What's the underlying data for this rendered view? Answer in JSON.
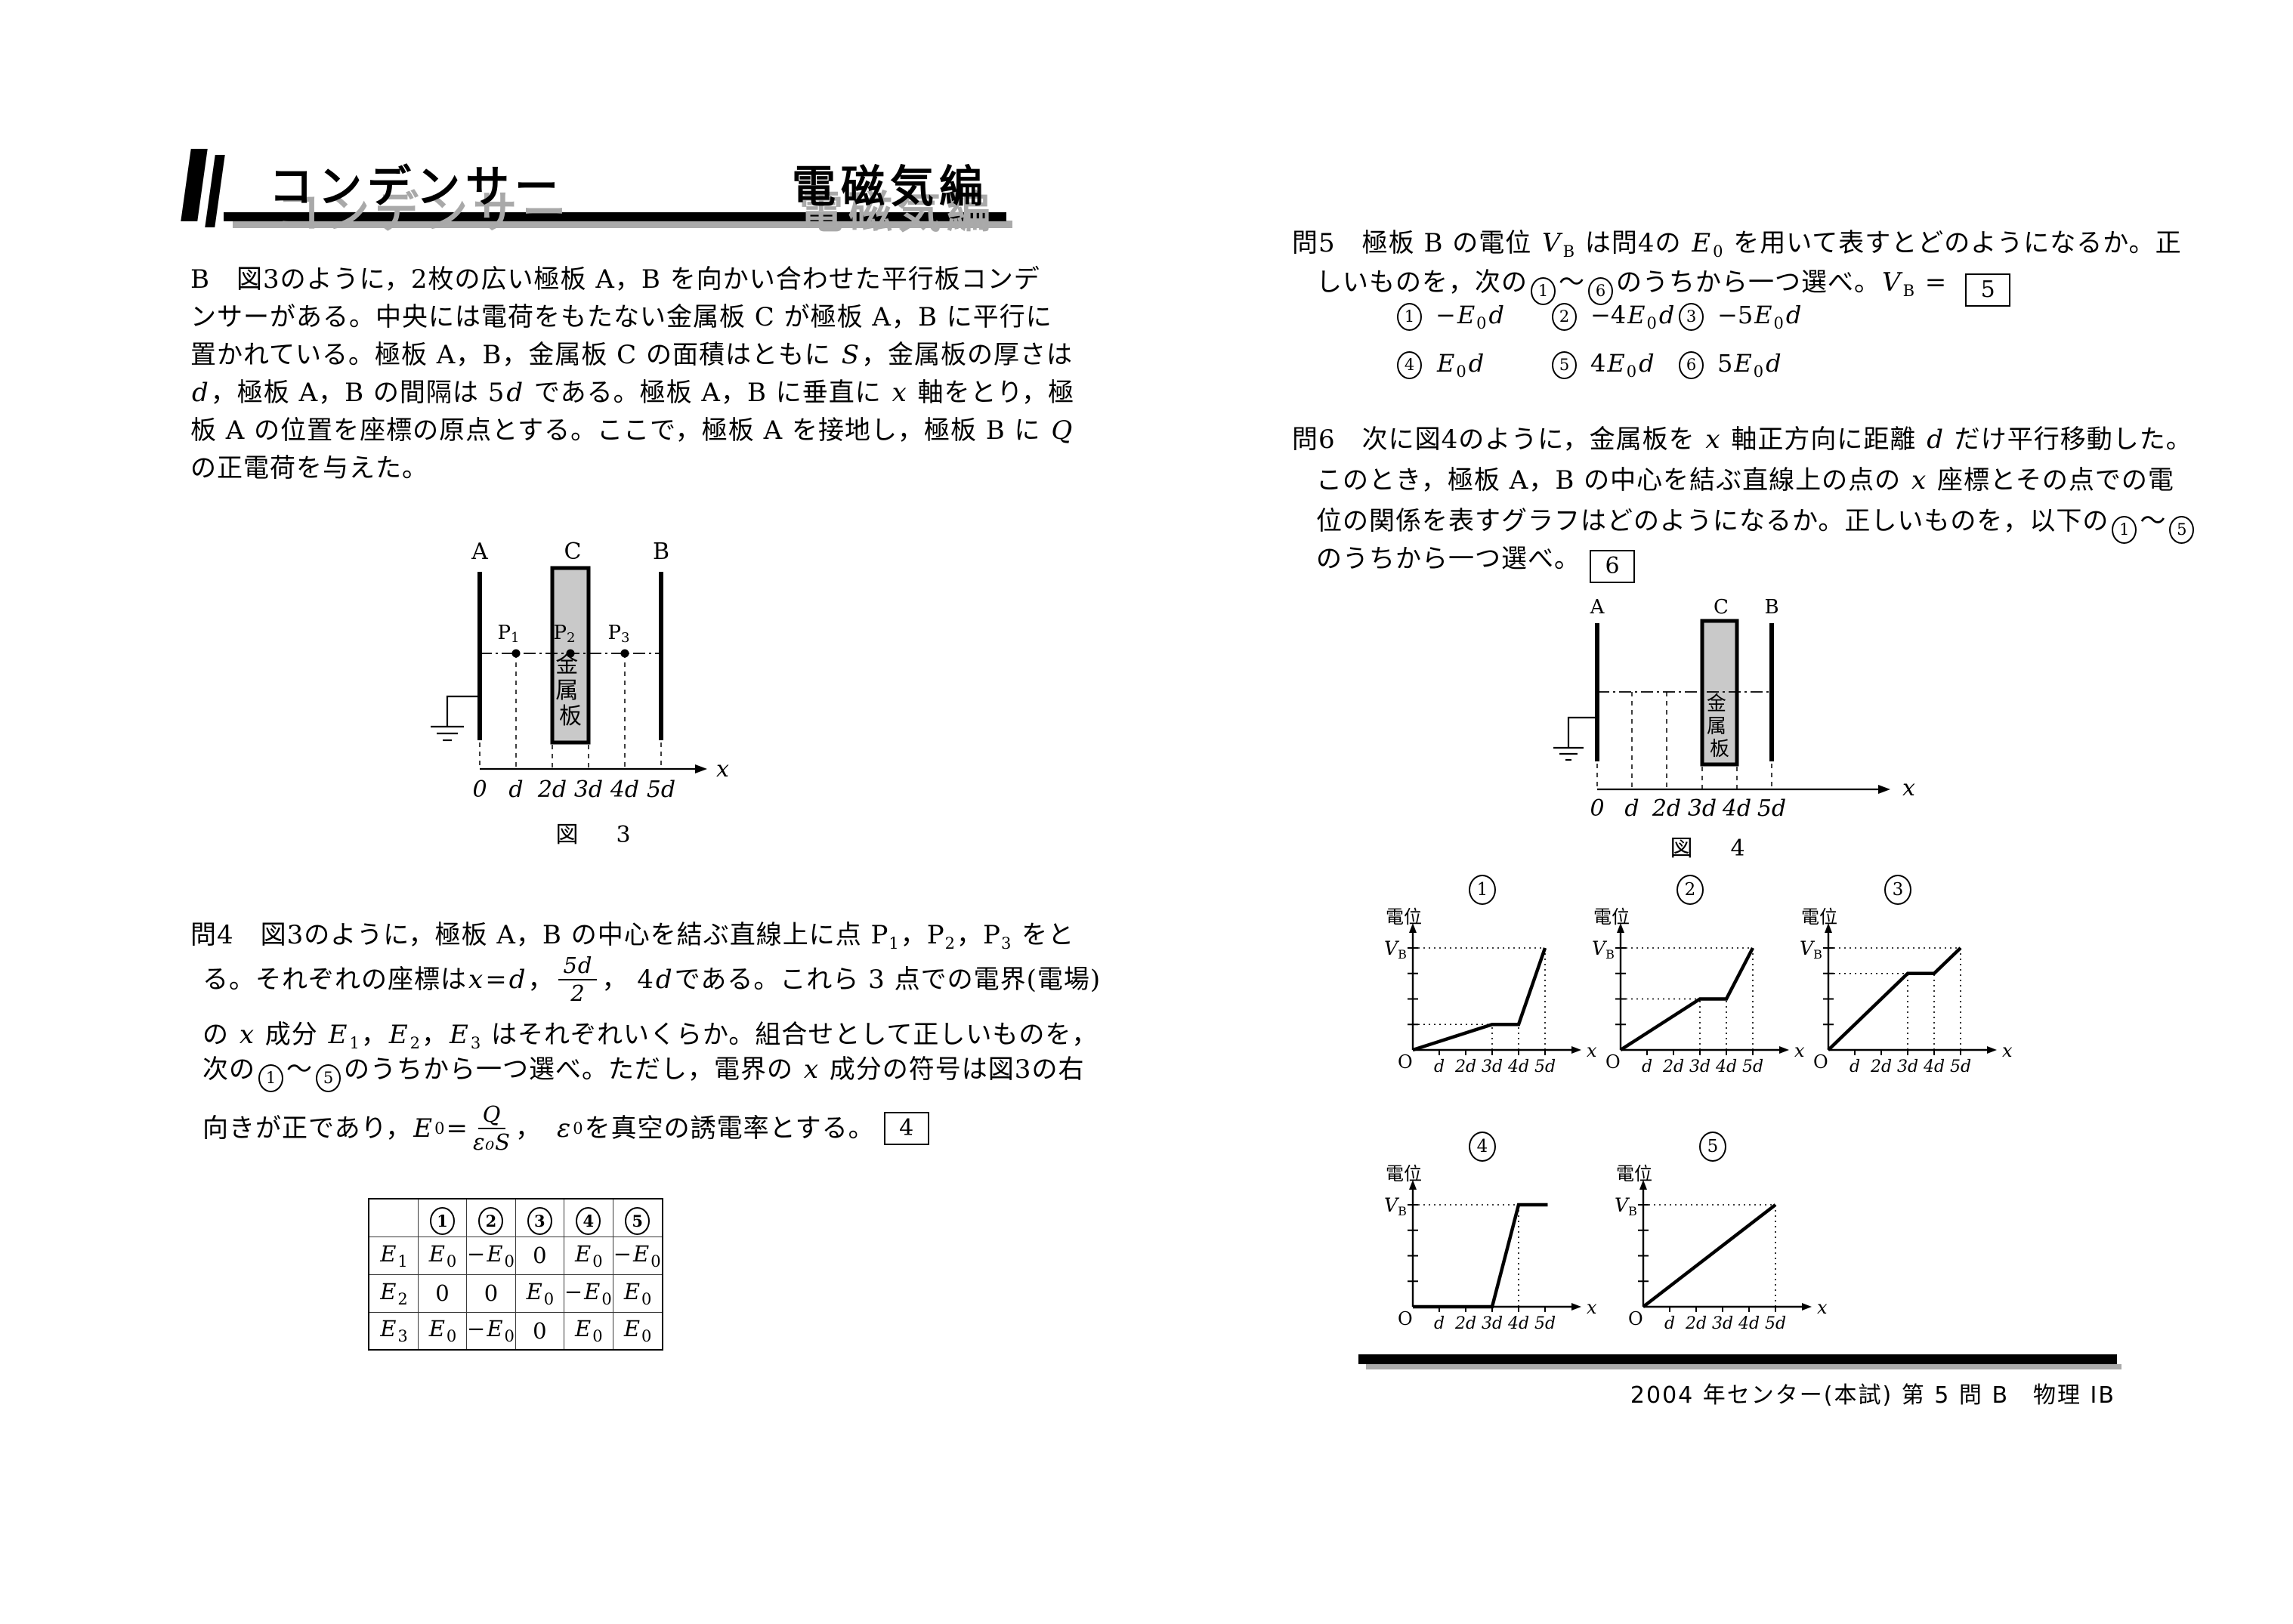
{
  "header": {
    "title": "コンデンサー",
    "section": "電磁気編"
  },
  "problem_b": {
    "lines": [
      [
        {
          "t": "B　図3のように，2枚の広い極板 A，B を向かい合わせた平行板コンデ"
        }
      ],
      [
        {
          "t": "ンサーがある。中央には電荷をもたない金属板 C が極板 A，B に平行に"
        }
      ],
      [
        {
          "t": "置かれている。極板 A，B，金属板 C の面積はともに "
        },
        {
          "i": "S"
        },
        {
          "t": "，金属板の厚さは"
        }
      ],
      [
        {
          "i": "d"
        },
        {
          "t": "，極板 A，B の間隔は 5"
        },
        {
          "i": "d"
        },
        {
          "t": " である。極板 A，B に垂直に "
        },
        {
          "i": "x"
        },
        {
          "t": " 軸をとり，極"
        }
      ],
      [
        {
          "t": "板 A の位置を座標の原点とする。ここで，極板 A を接地し，極板 B に "
        },
        {
          "i": "Q"
        }
      ],
      [
        {
          "t": "の正電荷を与えた。"
        }
      ]
    ]
  },
  "fig3": {
    "label_a": "A",
    "label_c": "C",
    "label_b": "B",
    "metal": [
      "金",
      "属",
      "板"
    ],
    "p": [
      {
        "base": "P",
        "sub": "1"
      },
      {
        "base": "P",
        "sub": "2"
      },
      {
        "base": "P",
        "sub": "3"
      }
    ],
    "x_ticks": [
      "0",
      "d",
      "2d",
      "3d",
      "4d",
      "5d"
    ],
    "x_label": "x",
    "caption": "図　3"
  },
  "q4": {
    "lines": [
      [
        {
          "t": "問4　図3のように，極板 A，B の中心を結ぶ直線上に点 P"
        },
        {
          "s": "1"
        },
        {
          "t": "，P"
        },
        {
          "s": "2"
        },
        {
          "t": "，P"
        },
        {
          "s": "3"
        },
        {
          "t": " をと"
        }
      ],
      [
        {
          "t": "る。それぞれの座標は "
        },
        {
          "i": "x"
        },
        {
          "t": " = "
        },
        {
          "i": "d"
        },
        {
          "t": "，"
        },
        {
          "f": {
            "n": "5d",
            "d": "2"
          }
        },
        {
          "t": "， 4"
        },
        {
          "i": "d"
        },
        {
          "t": " である。これら 3 点での電界(電場)"
        }
      ],
      [
        {
          "t": "の "
        },
        {
          "i": "x"
        },
        {
          "t": " 成分 "
        },
        {
          "i": "E"
        },
        {
          "s": "1"
        },
        {
          "t": "，"
        },
        {
          "i": "E"
        },
        {
          "s": "2"
        },
        {
          "t": "，"
        },
        {
          "i": "E"
        },
        {
          "s": "3"
        },
        {
          "t": " はそれぞれいくらか。組合せとして正しいものを，"
        }
      ],
      [
        {
          "t": "次の"
        },
        {
          "c": "1"
        },
        {
          "t": "〜"
        },
        {
          "c": "5"
        },
        {
          "t": "のうちから一つ選べ。ただし，電界の "
        },
        {
          "i": "x"
        },
        {
          "t": " 成分の符号は図3の右"
        }
      ],
      [
        {
          "t": "向きが正であり， "
        },
        {
          "i": "E"
        },
        {
          "s": "0"
        },
        {
          "t": " = "
        },
        {
          "f": {
            "n": "Q",
            "d": "ε₀S"
          }
        },
        {
          "t": "，　"
        },
        {
          "i": "ε"
        },
        {
          "s": "0"
        },
        {
          "t": " を真空の誘電率とする。"
        },
        {
          "b": "4"
        }
      ]
    ]
  },
  "table": {
    "col_headers": [
      "1",
      "2",
      "3",
      "4",
      "5"
    ],
    "rows": [
      {
        "label": [
          {
            "i": "E"
          },
          {
            "s": "1"
          }
        ],
        "cells": [
          [
            {
              "i": "E"
            },
            {
              "s": "0"
            }
          ],
          [
            {
              "t": "−"
            },
            {
              "i": "E"
            },
            {
              "s": "0"
            }
          ],
          [
            {
              "t": "0"
            }
          ],
          [
            {
              "i": "E"
            },
            {
              "s": "0"
            }
          ],
          [
            {
              "t": "−"
            },
            {
              "i": "E"
            },
            {
              "s": "0"
            }
          ]
        ]
      },
      {
        "label": [
          {
            "i": "E"
          },
          {
            "s": "2"
          }
        ],
        "cells": [
          [
            {
              "t": "0"
            }
          ],
          [
            {
              "t": "0"
            }
          ],
          [
            {
              "i": "E"
            },
            {
              "s": "0"
            }
          ],
          [
            {
              "t": "−"
            },
            {
              "i": "E"
            },
            {
              "s": "0"
            }
          ],
          [
            {
              "i": "E"
            },
            {
              "s": "0"
            }
          ]
        ]
      },
      {
        "label": [
          {
            "i": "E"
          },
          {
            "s": "3"
          }
        ],
        "cells": [
          [
            {
              "i": "E"
            },
            {
              "s": "0"
            }
          ],
          [
            {
              "t": "−"
            },
            {
              "i": "E"
            },
            {
              "s": "0"
            }
          ],
          [
            {
              "t": "0"
            }
          ],
          [
            {
              "i": "E"
            },
            {
              "s": "0"
            }
          ],
          [
            {
              "i": "E"
            },
            {
              "s": "0"
            }
          ]
        ]
      }
    ]
  },
  "q5": {
    "lines": [
      [
        {
          "t": "問5　極板 B の電位 "
        },
        {
          "i": "V"
        },
        {
          "s": "B"
        },
        {
          "t": " は問4の "
        },
        {
          "i": "E"
        },
        {
          "s": "0"
        },
        {
          "t": " を用いて表すとどのようになるか。正"
        }
      ],
      [
        {
          "t": "しいものを，次の"
        },
        {
          "c": "1"
        },
        {
          "t": "〜"
        },
        {
          "c": "6"
        },
        {
          "t": "のうちから一つ選べ。"
        },
        {
          "i": "V"
        },
        {
          "s": "B"
        },
        {
          "t": " = "
        },
        {
          "b": "5"
        }
      ]
    ],
    "options": [
      {
        "num": "1",
        "formula": [
          {
            "t": "−"
          },
          {
            "i": "E"
          },
          {
            "s": "0"
          },
          {
            "i": "d"
          }
        ]
      },
      {
        "num": "2",
        "formula": [
          {
            "t": "−4"
          },
          {
            "i": "E"
          },
          {
            "s": "0"
          },
          {
            "i": "d"
          }
        ]
      },
      {
        "num": "3",
        "formula": [
          {
            "t": "−5"
          },
          {
            "i": "E"
          },
          {
            "s": "0"
          },
          {
            "i": "d"
          }
        ]
      },
      {
        "num": "4",
        "formula": [
          {
            "i": "E"
          },
          {
            "s": "0"
          },
          {
            "i": "d"
          }
        ]
      },
      {
        "num": "5",
        "formula": [
          {
            "t": "4"
          },
          {
            "i": "E"
          },
          {
            "s": "0"
          },
          {
            "i": "d"
          }
        ]
      },
      {
        "num": "6",
        "formula": [
          {
            "t": "5"
          },
          {
            "i": "E"
          },
          {
            "s": "0"
          },
          {
            "i": "d"
          }
        ]
      }
    ]
  },
  "q6": {
    "lines": [
      [
        {
          "t": "問6　次に図4のように，金属板を "
        },
        {
          "i": "x"
        },
        {
          "t": " 軸正方向に距離 "
        },
        {
          "i": "d"
        },
        {
          "t": " だけ平行移動した。"
        }
      ],
      [
        {
          "t": "このとき，極板 A，B の中心を結ぶ直線上の点の "
        },
        {
          "i": "x"
        },
        {
          "t": " 座標とその点での電"
        }
      ],
      [
        {
          "t": "位の関係を表すグラフはどのようになるか。正しいものを，以下の"
        },
        {
          "c": "1"
        },
        {
          "t": "〜"
        },
        {
          "c": "5"
        }
      ],
      [
        {
          "t": "のうちから一つ選べ。"
        },
        {
          "b": "6"
        }
      ]
    ]
  },
  "fig4": {
    "label_a": "A",
    "label_c": "C",
    "label_b": "B",
    "metal": [
      "金",
      "属",
      "板"
    ],
    "x_ticks": [
      "0",
      "d",
      "2d",
      "3d",
      "4d",
      "5d"
    ],
    "x_label": "x",
    "caption": "図　4"
  },
  "chart_common": {
    "y_label": "電位",
    "vb": {
      "base": "V",
      "sub": "B"
    },
    "origin": "O",
    "x_label": "x",
    "x_ticks": [
      "d",
      "2d",
      "3d",
      "4d",
      "5d"
    ],
    "y_ticks": [
      0.25,
      0.5,
      0.75,
      1
    ]
  },
  "chart_data": [
    {
      "type": "line",
      "label": "1",
      "xlabel": "x",
      "ylabel": "電位",
      "x_unit": "d",
      "y_unit": "VB",
      "points": [
        [
          0,
          0
        ],
        [
          3,
          0.25
        ],
        [
          4,
          0.25
        ],
        [
          5,
          1
        ]
      ],
      "guides_h": [
        {
          "y": 1,
          "to_x": 5
        },
        {
          "y": 0.25,
          "to_x": 3
        }
      ],
      "guides_v": [
        {
          "x": 3,
          "to_y": 0.25
        },
        {
          "x": 4,
          "to_y": 0.25
        },
        {
          "x": 5,
          "to_y": 1
        }
      ]
    },
    {
      "type": "line",
      "label": "2",
      "xlabel": "x",
      "ylabel": "電位",
      "x_unit": "d",
      "y_unit": "VB",
      "points": [
        [
          0,
          0
        ],
        [
          3,
          0.5
        ],
        [
          4,
          0.5
        ],
        [
          5,
          1
        ]
      ],
      "guides_h": [
        {
          "y": 1,
          "to_x": 5
        },
        {
          "y": 0.5,
          "to_x": 3
        }
      ],
      "guides_v": [
        {
          "x": 3,
          "to_y": 0.5
        },
        {
          "x": 4,
          "to_y": 0.5
        },
        {
          "x": 5,
          "to_y": 1
        }
      ]
    },
    {
      "type": "line",
      "label": "3",
      "xlabel": "x",
      "ylabel": "電位",
      "x_unit": "d",
      "y_unit": "VB",
      "points": [
        [
          0,
          0
        ],
        [
          3,
          0.75
        ],
        [
          4,
          0.75
        ],
        [
          5,
          1
        ]
      ],
      "guides_h": [
        {
          "y": 1,
          "to_x": 5
        },
        {
          "y": 0.75,
          "to_x": 3
        }
      ],
      "guides_v": [
        {
          "x": 3,
          "to_y": 0.75
        },
        {
          "x": 4,
          "to_y": 0.75
        },
        {
          "x": 5,
          "to_y": 1
        }
      ]
    },
    {
      "type": "line",
      "label": "4",
      "xlabel": "x",
      "ylabel": "電位",
      "x_unit": "d",
      "y_unit": "VB",
      "points": [
        [
          0,
          0
        ],
        [
          3,
          0
        ],
        [
          4,
          1
        ],
        [
          5.1,
          1
        ]
      ],
      "guides_h": [
        {
          "y": 1,
          "to_x": 4
        }
      ],
      "guides_v": [
        {
          "x": 4,
          "to_y": 1
        }
      ]
    },
    {
      "type": "line",
      "label": "5",
      "xlabel": "x",
      "ylabel": "電位",
      "x_unit": "d",
      "y_unit": "VB",
      "points": [
        [
          0,
          0
        ],
        [
          5,
          1
        ]
      ],
      "guides_h": [
        {
          "y": 1,
          "to_x": 5
        }
      ],
      "guides_v": [
        {
          "x": 5,
          "to_y": 1
        }
      ]
    }
  ],
  "footer": {
    "text": "2004 年センター(本試) 第 5 問 B　物理 IB"
  }
}
